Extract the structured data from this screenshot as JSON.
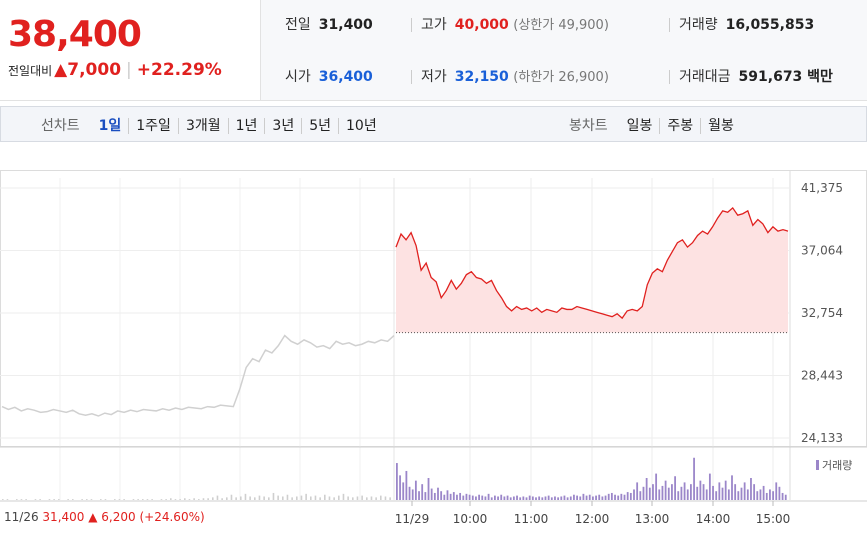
{
  "quote": {
    "price": "38,400",
    "change_label": "전일대비",
    "change": "▲7,000",
    "change_pct": "+22.29%"
  },
  "stats": {
    "prev_close_label": "전일",
    "prev_close": "31,400",
    "high_label": "고가",
    "high": "40,000",
    "upper_limit": "(상한가 49,900)",
    "volume_label": "거래량",
    "volume": "16,055,853",
    "open_label": "시가",
    "open": "36,400",
    "low_label": "저가",
    "low": "32,150",
    "lower_limit": "(하한가 26,900)",
    "value_label": "거래대금",
    "value": "591,673 백만"
  },
  "tabs": {
    "line_chart_label": "선차트",
    "line_periods": [
      "1일",
      "1주일",
      "3개월",
      "1년",
      "3년",
      "5년",
      "10년"
    ],
    "candle_chart_label": "봉차트",
    "candle_periods": [
      "일봉",
      "주봉",
      "월봉"
    ]
  },
  "colors": {
    "up": "#e0211f",
    "down": "#1a60d8",
    "accent": "#1a4ec0",
    "volume": "#9b86c9"
  },
  "chart_data": {
    "type": "line",
    "y_ticks": [
      "41,375",
      "37,064",
      "32,754",
      "28,443",
      "24,133"
    ],
    "ylim": [
      24133,
      41375
    ],
    "x_ticks": [
      "11/26",
      "11/29",
      "10:00",
      "11:00",
      "12:00",
      "13:00",
      "14:00",
      "15:00"
    ],
    "reference_price": 31400,
    "volume_legend": "거래량",
    "prev_day_note": {
      "date": "11/26",
      "price": "31,400",
      "change": "▲ 6,200",
      "pct": "(+24.60%)"
    },
    "series": [
      {
        "values": [
          26300,
          26100,
          26250,
          26000,
          26150,
          26050,
          25900,
          25950,
          26100,
          26000,
          25900,
          26050,
          25800,
          25700,
          25800,
          25650,
          25850,
          25750,
          26000,
          25900,
          26050,
          25950,
          26100,
          26050,
          26000,
          26150,
          26050,
          26200,
          26100,
          26250,
          26200,
          26150,
          26300,
          26250,
          26400,
          26350,
          26300,
          27500,
          29000,
          29600,
          29400,
          30200,
          30000,
          30500,
          31200,
          30800,
          30600,
          30900,
          30700,
          30400,
          30500,
          30300,
          30800,
          30600,
          30700,
          30500,
          30600,
          30800,
          30700,
          30900,
          30800,
          31200
        ]
      },
      {
        "values": [
          37300,
          38200,
          37800,
          38300,
          37400,
          35700,
          36200,
          35200,
          34900,
          33800,
          34300,
          35000,
          34400,
          34800,
          35400,
          35600,
          35200,
          35100,
          34800,
          35000,
          34300,
          33800,
          33200,
          32900,
          33200,
          33000,
          33100,
          32900,
          33100,
          32800,
          33000,
          32900,
          32800,
          33100,
          33000,
          33000,
          33200,
          33100,
          33000,
          32900,
          32800,
          32700,
          32600,
          32500,
          32700,
          32400,
          32900,
          33000,
          32900,
          33200,
          34700,
          35500,
          35800,
          35600,
          36400,
          37000,
          37600,
          37800,
          37300,
          37600,
          38100,
          38400,
          38200,
          38700,
          39300,
          39800,
          39700,
          40000,
          39500,
          39600,
          39800,
          38800,
          39200,
          38900,
          38300,
          38700,
          38400,
          38500,
          38400
        ]
      }
    ],
    "volume": {
      "prev_day": [
        1,
        1,
        0,
        1,
        1,
        1,
        0,
        1,
        1,
        0,
        1,
        1,
        1,
        0,
        1,
        1,
        0,
        1,
        1,
        1,
        0,
        1,
        1,
        0,
        1,
        1,
        1,
        0,
        1,
        1,
        1,
        1,
        1,
        0,
        1,
        1,
        2,
        1,
        1,
        2,
        1,
        2,
        1,
        2,
        2,
        3,
        5,
        2,
        3,
        6,
        3,
        4,
        7,
        4,
        3,
        5,
        4,
        3,
        8,
        5,
        4,
        6,
        3,
        4,
        5,
        7,
        4,
        5,
        3,
        6,
        4,
        3,
        5,
        7,
        4,
        3,
        4,
        5,
        3,
        4,
        3,
        5,
        4,
        3
      ],
      "today": [
        42,
        28,
        20,
        33,
        15,
        12,
        22,
        10,
        18,
        9,
        25,
        13,
        8,
        14,
        10,
        6,
        11,
        7,
        9,
        6,
        8,
        5,
        7,
        6,
        5,
        4,
        6,
        5,
        4,
        7,
        3,
        5,
        4,
        6,
        4,
        5,
        3,
        4,
        5,
        3,
        4,
        3,
        5,
        4,
        3,
        4,
        3,
        4,
        5,
        3,
        4,
        3,
        4,
        5,
        3,
        4,
        6,
        5,
        4,
        7,
        5,
        6,
        4,
        5,
        6,
        4,
        5,
        7,
        8,
        6,
        5,
        7,
        6,
        9,
        8,
        12,
        20,
        10,
        15,
        25,
        14,
        18,
        30,
        12,
        16,
        22,
        14,
        18,
        27,
        10,
        15,
        20,
        12,
        18,
        48,
        15,
        22,
        18,
        12,
        30,
        16,
        10,
        20,
        14,
        22,
        12,
        28,
        18,
        10,
        14,
        20,
        12,
        25,
        18,
        10,
        12,
        16,
        8,
        12,
        10,
        20,
        15,
        8,
        6
      ]
    }
  }
}
